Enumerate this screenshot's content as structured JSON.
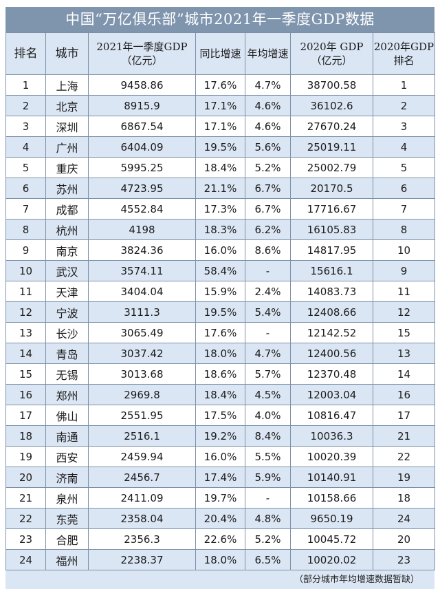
{
  "title": "中国“万亿俱乐部”城市2021年一季度GDP数据",
  "headers": [
    "排名",
    "城市",
    "2021年一季度GDP（亿元）",
    "同比增速",
    "年均增速",
    "2020年 GDP（亿元）",
    "2020年GDP排名"
  ],
  "rows": [
    [
      "1",
      "上海",
      "9458.86",
      "17.6%",
      "4.7%",
      "38700.58",
      "1"
    ],
    [
      "2",
      "北京",
      "8915.9",
      "17.1%",
      "4.6%",
      "36102.6",
      "2"
    ],
    [
      "3",
      "深圳",
      "6867.54",
      "17.1%",
      "4.6%",
      "27670.24",
      "3"
    ],
    [
      "4",
      "广州",
      "6404.09",
      "19.5%",
      "5.6%",
      "25019.11",
      "4"
    ],
    [
      "5",
      "重庆",
      "5995.25",
      "18.4%",
      "5.2%",
      "25002.79",
      "5"
    ],
    [
      "6",
      "苏州",
      "4723.95",
      "21.1%",
      "6.7%",
      "20170.5",
      "6"
    ],
    [
      "7",
      "成都",
      "4552.84",
      "17.3%",
      "6.7%",
      "17716.67",
      "7"
    ],
    [
      "8",
      "杭州",
      "4198",
      "18.3%",
      "6.2%",
      "16105.83",
      "8"
    ],
    [
      "9",
      "南京",
      "3824.36",
      "16.0%",
      "8.6%",
      "14817.95",
      "10"
    ],
    [
      "10",
      "武汉",
      "3574.11",
      "58.4%",
      "-",
      "15616.1",
      "9"
    ],
    [
      "11",
      "天津",
      "3404.04",
      "15.9%",
      "2.4%",
      "14083.73",
      "11"
    ],
    [
      "12",
      "宁波",
      "3111.3",
      "19.5%",
      "5.4%",
      "12408.66",
      "12"
    ],
    [
      "13",
      "长沙",
      "3065.49",
      "17.6%",
      "-",
      "12142.52",
      "15"
    ],
    [
      "14",
      "青岛",
      "3037.42",
      "18.0%",
      "4.7%",
      "12400.56",
      "13"
    ],
    [
      "15",
      "无锡",
      "3013.68",
      "18.6%",
      "5.7%",
      "12370.48",
      "14"
    ],
    [
      "16",
      "郑州",
      "2969.8",
      "18.4%",
      "4.5%",
      "12003.04",
      "16"
    ],
    [
      "17",
      "佛山",
      "2551.95",
      "17.5%",
      "4.0%",
      "10816.47",
      "17"
    ],
    [
      "18",
      "南通",
      "2516.1",
      "19.2%",
      "8.4%",
      "10036.3",
      "21"
    ],
    [
      "19",
      "西安",
      "2459.94",
      "16.0%",
      "5.5%",
      "10020.39",
      "22"
    ],
    [
      "20",
      "济南",
      "2456.7",
      "17.4%",
      "5.9%",
      "10140.91",
      "19"
    ],
    [
      "21",
      "泉州",
      "2411.09",
      "19.7%",
      "-",
      "10158.66",
      "18"
    ],
    [
      "22",
      "东莞",
      "2358.04",
      "20.4%",
      "4.8%",
      "9650.19",
      "24"
    ],
    [
      "23",
      "合肥",
      "2356.3",
      "22.6%",
      "5.2%",
      "10045.72",
      "20"
    ],
    [
      "24",
      "福州",
      "2238.37",
      "18.0%",
      "6.5%",
      "10020.02",
      "23"
    ]
  ],
  "note": "（部分城市年均增速数据暂缺）",
  "colors": {
    "title_bg": "#7f94ad",
    "stripe": "#dbe6f4",
    "border": "#7d8fa6"
  }
}
